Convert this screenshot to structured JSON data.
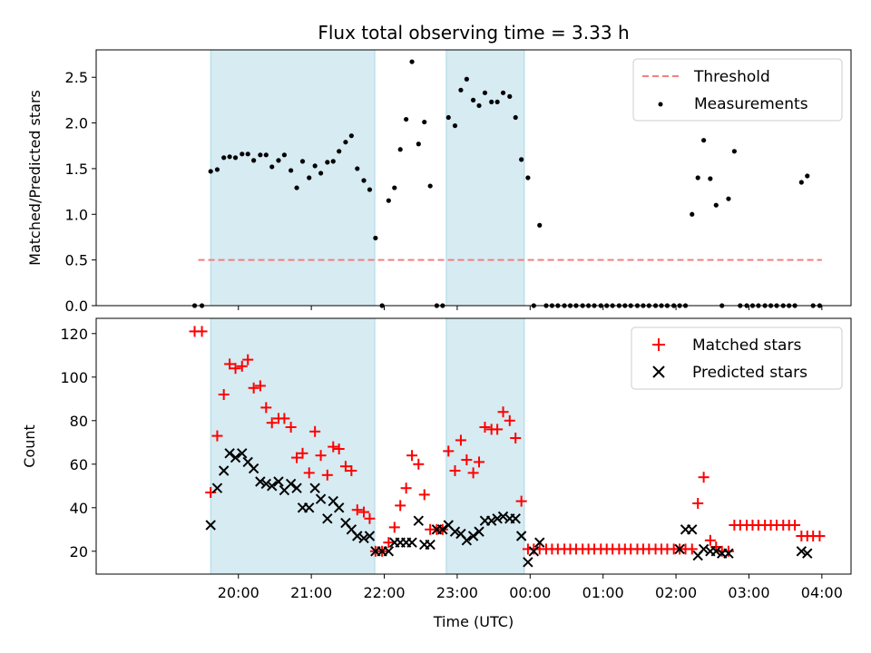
{
  "chart_data": [
    {
      "type": "scatter",
      "title": "Flux total observing time = 3.33 h",
      "ylabel": "Matched/Predicted stars",
      "xlabel": "",
      "x_unit": "hours since 19:00 UTC",
      "xlim": [
        -0.95,
        9.4
      ],
      "ylim": [
        0,
        2.8
      ],
      "yticks": [
        0.0,
        0.5,
        1.0,
        1.5,
        2.0,
        2.5
      ],
      "ytick_labels": [
        "0.0",
        "0.5",
        "1.0",
        "1.5",
        "2.0",
        "2.5"
      ],
      "grid": false,
      "legend_position": "upper right",
      "shaded_intervals": [
        [
          0.62,
          2.87
        ],
        [
          3.85,
          4.92
        ]
      ],
      "threshold": {
        "name": "Threshold",
        "value": 0.5,
        "x_range": [
          0.45,
          9.0
        ],
        "color": "#f08080"
      },
      "series": [
        {
          "name": "Measurements",
          "color": "#000000",
          "x": [
            0.4,
            0.5,
            0.62,
            0.71,
            0.8,
            0.88,
            0.96,
            1.05,
            1.13,
            1.21,
            1.3,
            1.38,
            1.46,
            1.55,
            1.63,
            1.72,
            1.8,
            1.88,
            1.97,
            2.05,
            2.13,
            2.22,
            2.3,
            2.38,
            2.47,
            2.55,
            2.63,
            2.72,
            2.8,
            2.88,
            2.97,
            3.06,
            3.14,
            3.22,
            3.3,
            3.38,
            3.47,
            3.55,
            3.63,
            3.72,
            3.8,
            3.88,
            3.97,
            4.05,
            4.13,
            4.22,
            4.3,
            4.38,
            4.47,
            4.55,
            4.63,
            4.72,
            4.8,
            4.88,
            4.97,
            5.05,
            5.13,
            5.22,
            5.3,
            5.38,
            5.47,
            5.55,
            5.63,
            5.72,
            5.8,
            5.88,
            5.97,
            6.05,
            6.13,
            6.22,
            6.3,
            6.38,
            6.47,
            6.55,
            6.63,
            6.72,
            6.8,
            6.88,
            6.97,
            7.05,
            7.13,
            7.22,
            7.3,
            7.38,
            7.47,
            7.55,
            7.63,
            7.72,
            7.8,
            7.88,
            7.97,
            8.05,
            8.13,
            8.22,
            8.3,
            8.38,
            8.47,
            8.55,
            8.63,
            8.72,
            8.8,
            8.88,
            8.97
          ],
          "y": [
            0.0,
            0.0,
            1.47,
            1.49,
            1.62,
            1.63,
            1.62,
            1.66,
            1.66,
            1.59,
            1.65,
            1.65,
            1.52,
            1.59,
            1.65,
            1.48,
            1.29,
            1.58,
            1.4,
            1.53,
            1.45,
            1.57,
            1.58,
            1.69,
            1.79,
            1.86,
            1.5,
            1.37,
            1.27,
            0.74,
            0.0,
            1.15,
            1.29,
            1.71,
            2.04,
            2.67,
            1.77,
            2.01,
            1.31,
            0.0,
            0.0,
            2.06,
            1.97,
            2.36,
            2.48,
            2.25,
            2.19,
            2.33,
            2.23,
            2.23,
            2.33,
            2.29,
            2.06,
            1.6,
            1.4,
            0.0,
            0.88,
            0.0,
            0.0,
            0.0,
            0.0,
            0.0,
            0.0,
            0.0,
            0.0,
            0.0,
            0.0,
            0.0,
            0.0,
            0.0,
            0.0,
            0.0,
            0.0,
            0.0,
            0.0,
            0.0,
            0.0,
            0.0,
            0.0,
            0.0,
            0.0,
            1.0,
            1.4,
            1.81,
            1.39,
            1.1,
            0.0,
            1.17,
            1.69,
            0.0,
            0.0,
            0.0,
            0.0,
            0.0,
            0.0,
            0.0,
            0.0,
            0.0,
            0.0,
            1.35,
            1.42,
            0.0,
            0.0
          ]
        }
      ]
    },
    {
      "type": "scatter",
      "title": "",
      "ylabel": "Count",
      "xlabel": "Time (UTC)",
      "x_unit": "hours since 19:00 UTC",
      "xlim": [
        -0.95,
        9.4
      ],
      "ylim": [
        9.5,
        127
      ],
      "yticks": [
        20,
        40,
        60,
        80,
        100,
        120
      ],
      "ytick_labels": [
        "20",
        "40",
        "60",
        "80",
        "100",
        "120"
      ],
      "xticks": [
        1,
        2,
        3,
        4,
        5,
        6,
        7,
        8,
        9
      ],
      "xtick_labels": [
        "20:00",
        "21:00",
        "22:00",
        "23:00",
        "00:00",
        "01:00",
        "02:00",
        "03:00",
        "04:00"
      ],
      "grid": false,
      "legend_position": "upper right",
      "shaded_intervals": [
        [
          0.62,
          2.87
        ],
        [
          3.85,
          4.92
        ]
      ],
      "series": [
        {
          "name": "Matched stars",
          "marker": "plus",
          "color": "#ff0000",
          "x": [
            0.4,
            0.5,
            0.62,
            0.71,
            0.8,
            0.88,
            0.96,
            1.05,
            1.13,
            1.21,
            1.3,
            1.38,
            1.46,
            1.55,
            1.63,
            1.72,
            1.8,
            1.88,
            1.97,
            2.05,
            2.13,
            2.22,
            2.3,
            2.38,
            2.47,
            2.55,
            2.63,
            2.72,
            2.8,
            2.88,
            2.97,
            3.06,
            3.14,
            3.22,
            3.3,
            3.38,
            3.47,
            3.55,
            3.63,
            3.72,
            3.8,
            3.88,
            3.97,
            4.05,
            4.13,
            4.22,
            4.3,
            4.38,
            4.47,
            4.55,
            4.63,
            4.72,
            4.8,
            4.88,
            4.97,
            5.05,
            5.13,
            5.22,
            5.3,
            5.38,
            5.47,
            5.55,
            5.63,
            5.72,
            5.8,
            5.88,
            5.97,
            6.05,
            6.13,
            6.22,
            6.3,
            6.38,
            6.47,
            6.55,
            6.63,
            6.72,
            6.8,
            6.88,
            6.97,
            7.05,
            7.13,
            7.22,
            7.3,
            7.38,
            7.47,
            7.55,
            7.63,
            7.72,
            7.8,
            7.88,
            7.97,
            8.05,
            8.13,
            8.22,
            8.3,
            8.38,
            8.47,
            8.55,
            8.63,
            8.72,
            8.8,
            8.88,
            8.97
          ],
          "y": [
            121,
            121,
            47,
            73,
            92,
            106,
            104,
            105,
            108,
            95,
            96,
            86,
            79,
            81,
            81,
            77,
            63,
            65,
            56,
            75,
            64,
            55,
            68,
            67,
            59,
            57,
            39,
            38,
            35,
            20,
            20,
            24,
            31,
            41,
            49,
            64,
            60,
            46,
            30,
            30,
            30,
            66,
            57,
            71,
            62,
            56,
            61,
            77,
            76,
            76,
            84,
            80,
            72,
            43,
            21,
            21,
            21,
            21,
            21,
            21,
            21,
            21,
            21,
            21,
            21,
            21,
            21,
            21,
            21,
            21,
            21,
            21,
            21,
            21,
            21,
            21,
            21,
            21,
            21,
            21,
            21,
            21,
            42,
            54,
            25,
            22,
            20,
            20,
            32,
            32,
            32,
            32,
            32,
            32,
            32,
            32,
            32,
            32,
            32,
            27,
            27,
            27,
            27
          ]
        },
        {
          "name": "Predicted stars",
          "marker": "x",
          "color": "#000000",
          "x": [
            0.62,
            0.71,
            0.8,
            0.88,
            0.96,
            1.05,
            1.13,
            1.21,
            1.3,
            1.38,
            1.46,
            1.55,
            1.63,
            1.72,
            1.8,
            1.88,
            1.97,
            2.05,
            2.13,
            2.22,
            2.3,
            2.38,
            2.47,
            2.55,
            2.63,
            2.72,
            2.8,
            2.88,
            2.97,
            3.06,
            3.14,
            3.22,
            3.3,
            3.38,
            3.47,
            3.55,
            3.63,
            3.72,
            3.8,
            3.88,
            3.97,
            4.05,
            4.13,
            4.22,
            4.3,
            4.38,
            4.47,
            4.55,
            4.63,
            4.72,
            4.8,
            4.88,
            4.97,
            5.05,
            5.13,
            7.05,
            7.13,
            7.22,
            7.3,
            7.38,
            7.47,
            7.55,
            7.63,
            7.72,
            8.72,
            8.8
          ],
          "y": [
            32,
            49,
            57,
            65,
            63,
            65,
            61,
            58,
            52,
            51,
            50,
            52,
            48,
            51,
            49,
            40,
            40,
            49,
            44,
            35,
            43,
            40,
            33,
            30,
            27,
            26,
            27,
            20,
            20,
            20,
            24,
            24,
            24,
            24,
            34,
            23,
            23,
            30,
            30,
            32,
            29,
            28,
            25,
            27,
            29,
            34,
            34,
            35,
            36,
            35,
            35,
            27,
            15,
            20,
            24,
            21,
            30,
            30,
            18,
            21,
            20,
            20,
            19,
            19,
            20,
            19
          ]
        }
      ]
    }
  ]
}
